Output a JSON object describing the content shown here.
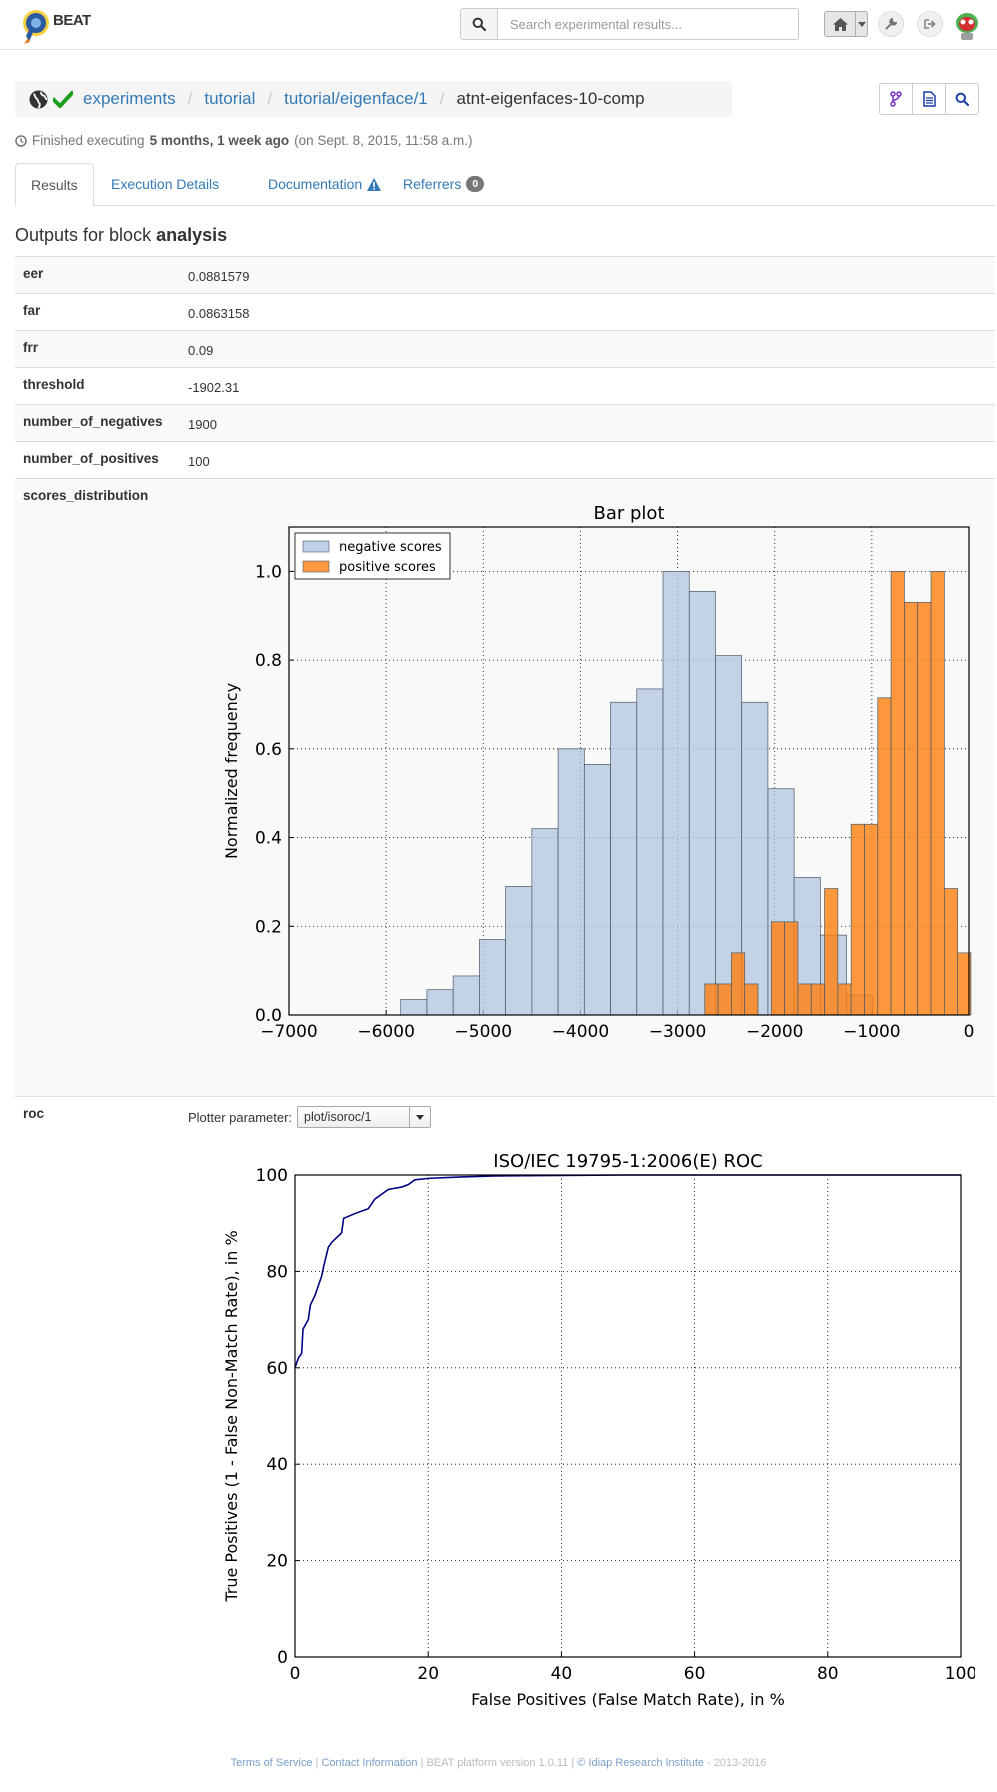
{
  "navbar": {
    "brand": "BEAT",
    "search_placeholder": "Search experimental results...",
    "icons": [
      "search-icon",
      "home-icon",
      "caret-down-icon",
      "wrench-icon",
      "sign-out-icon",
      "user-avatar"
    ]
  },
  "breadcrumb": {
    "items": [
      "experiments",
      "tutorial",
      "tutorial/eigenface/1"
    ],
    "active": "atnt-eigenfaces-10-comp",
    "icons": [
      "globe-icon",
      "check-icon"
    ]
  },
  "actions": [
    "fork-icon",
    "report-icon",
    "search-icon"
  ],
  "status": {
    "prefix": "Finished executing",
    "ago": "5 months, 1 week ago",
    "date": "(on Sept. 8, 2015, 11:58 a.m.)"
  },
  "tabs": [
    {
      "label": "Results",
      "active": true
    },
    {
      "label": "Execution Details"
    },
    {
      "label": "Documentation"
    },
    {
      "label": "Referrers",
      "badge": "0"
    }
  ],
  "outputs": {
    "title_prefix": "Outputs for block",
    "block": "analysis",
    "rows": [
      {
        "key": "eer",
        "value": "0.0881579"
      },
      {
        "key": "far",
        "value": "0.0863158"
      },
      {
        "key": "frr",
        "value": "0.09"
      },
      {
        "key": "threshold",
        "value": "-1902.31"
      },
      {
        "key": "number_of_negatives",
        "value": "1900"
      },
      {
        "key": "number_of_positives",
        "value": "100"
      }
    ],
    "scores_key": "scores_distribution",
    "roc_key": "roc",
    "plotter_label": "Plotter parameter:",
    "plotter_value": "plot/isoroc/1"
  },
  "colors": {
    "negative": "#b0c4de",
    "positive": "#ff7f0e",
    "roc": "#000080",
    "link": "#337ab7"
  },
  "chart_data": [
    {
      "type": "bar",
      "title": "Bar plot",
      "xlabel": "",
      "ylabel": "Normalized frequency",
      "xlim": [
        -7000,
        0
      ],
      "ylim": [
        0,
        1.1
      ],
      "xticks": [
        -7000,
        -6000,
        -5000,
        -4000,
        -3000,
        -2000,
        -1000,
        0
      ],
      "yticks": [
        0.0,
        0.2,
        0.4,
        0.6,
        0.8,
        1.0
      ],
      "grid": true,
      "legend": "top-left",
      "series": [
        {
          "name": "negative scores",
          "color": "#b0c4de",
          "bin_width": 270,
          "bins": [
            [
              -5850,
              0.035
            ],
            [
              -5580,
              0.057
            ],
            [
              -5310,
              0.088
            ],
            [
              -5040,
              0.17
            ],
            [
              -4770,
              0.29
            ],
            [
              -4500,
              0.42
            ],
            [
              -4230,
              0.6
            ],
            [
              -3960,
              0.565
            ],
            [
              -3690,
              0.705
            ],
            [
              -3420,
              0.735
            ],
            [
              -3150,
              1.0
            ],
            [
              -2880,
              0.955
            ],
            [
              -2610,
              0.81
            ],
            [
              -2340,
              0.705
            ],
            [
              -2070,
              0.51
            ],
            [
              -1800,
              0.31
            ],
            [
              -1530,
              0.18
            ],
            [
              -1260,
              0.045
            ]
          ]
        },
        {
          "name": "positive scores",
          "color": "#ff7f0e",
          "bin_width": 137,
          "bins": [
            [
              -2720,
              0.07
            ],
            [
              -2583,
              0.07
            ],
            [
              -2446,
              0.14
            ],
            [
              -2309,
              0.07
            ],
            [
              -2172,
              0.0
            ],
            [
              -2035,
              0.21
            ],
            [
              -1898,
              0.21
            ],
            [
              -1761,
              0.07
            ],
            [
              -1624,
              0.07
            ],
            [
              -1487,
              0.285
            ],
            [
              -1350,
              0.07
            ],
            [
              -1213,
              0.43
            ],
            [
              -1076,
              0.43
            ],
            [
              -939,
              0.715
            ],
            [
              -802,
              1.0
            ],
            [
              -665,
              0.93
            ],
            [
              -528,
              0.93
            ],
            [
              -391,
              1.0
            ],
            [
              -254,
              0.285
            ],
            [
              -117,
              0.14
            ]
          ]
        }
      ]
    },
    {
      "type": "line",
      "title": "ISO/IEC 19795-1:2006(E) ROC",
      "xlabel": "False Positives (False Match Rate), in %",
      "ylabel": "True Positives (1 - False Non-Match Rate), in %",
      "xlim": [
        0,
        100
      ],
      "ylim": [
        0,
        100
      ],
      "xticks": [
        0,
        20,
        40,
        60,
        80,
        100
      ],
      "yticks": [
        0,
        20,
        40,
        60,
        80,
        100
      ],
      "grid": true,
      "series": [
        {
          "color": "#000080",
          "x": [
            0,
            0.5,
            1,
            1.2,
            2,
            2.3,
            3,
            3.5,
            4,
            4.3,
            5,
            5.5,
            7,
            7.3,
            9,
            11,
            12,
            13,
            14,
            16,
            17,
            18,
            20,
            25,
            30,
            40,
            50,
            60,
            70,
            80,
            90,
            100
          ],
          "y": [
            60,
            62,
            63,
            68,
            70,
            73,
            75,
            77,
            79,
            81,
            85,
            86,
            88,
            91,
            92,
            93,
            95,
            96,
            97,
            97.5,
            98,
            99,
            99.3,
            99.6,
            99.8,
            99.9,
            100,
            100,
            100,
            100,
            100,
            100
          ]
        }
      ]
    }
  ],
  "footer": {
    "terms": "Terms of Service",
    "contact": "Contact Information",
    "version": "BEAT platform version 1.0.11",
    "idiap": "© Idiap Research Institute",
    "years": "- 2013-2016"
  }
}
